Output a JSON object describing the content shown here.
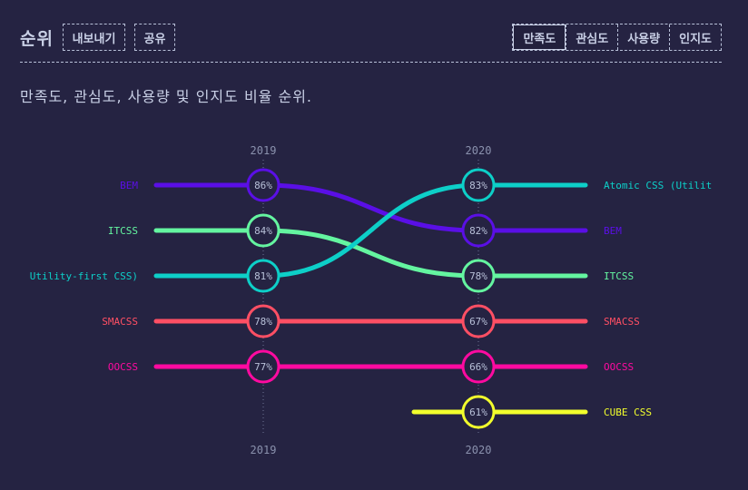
{
  "header": {
    "title": "순위",
    "export_label": "내보내기",
    "share_label": "공유",
    "tabs": [
      {
        "label": "만족도",
        "active": true
      },
      {
        "label": "관심도",
        "active": false
      },
      {
        "label": "사용량",
        "active": false
      },
      {
        "label": "인지도",
        "active": false
      }
    ]
  },
  "subtitle": "만족도, 관심도, 사용량 및 인지도 비율 순위.",
  "chart_data": {
    "type": "bump",
    "years": [
      "2019",
      "2020"
    ],
    "metric": "만족도",
    "series": [
      {
        "name": "BEM",
        "color": "#5a0fe6",
        "values": [
          86,
          82
        ],
        "ranks": [
          1,
          2
        ]
      },
      {
        "name": "ITCSS",
        "color": "#64f5a0",
        "values": [
          84,
          78
        ],
        "ranks": [
          2,
          3
        ]
      },
      {
        "name": "Atomic CSS (Utility-first CSS)",
        "label_2019": "Utility-first CSS)",
        "label_2020": "Atomic CSS (Utilit",
        "color": "#0dcfc8",
        "values": [
          81,
          83
        ],
        "ranks": [
          3,
          1
        ]
      },
      {
        "name": "SMACSS",
        "color": "#ff4f64",
        "values": [
          78,
          67
        ],
        "ranks": [
          4,
          4
        ]
      },
      {
        "name": "OOCSS",
        "color": "#ff0aa0",
        "values": [
          77,
          66
        ],
        "ranks": [
          5,
          5
        ]
      },
      {
        "name": "CUBE CSS",
        "color": "#f3ff2c",
        "values": [
          null,
          61
        ],
        "ranks": [
          null,
          6
        ]
      }
    ]
  }
}
